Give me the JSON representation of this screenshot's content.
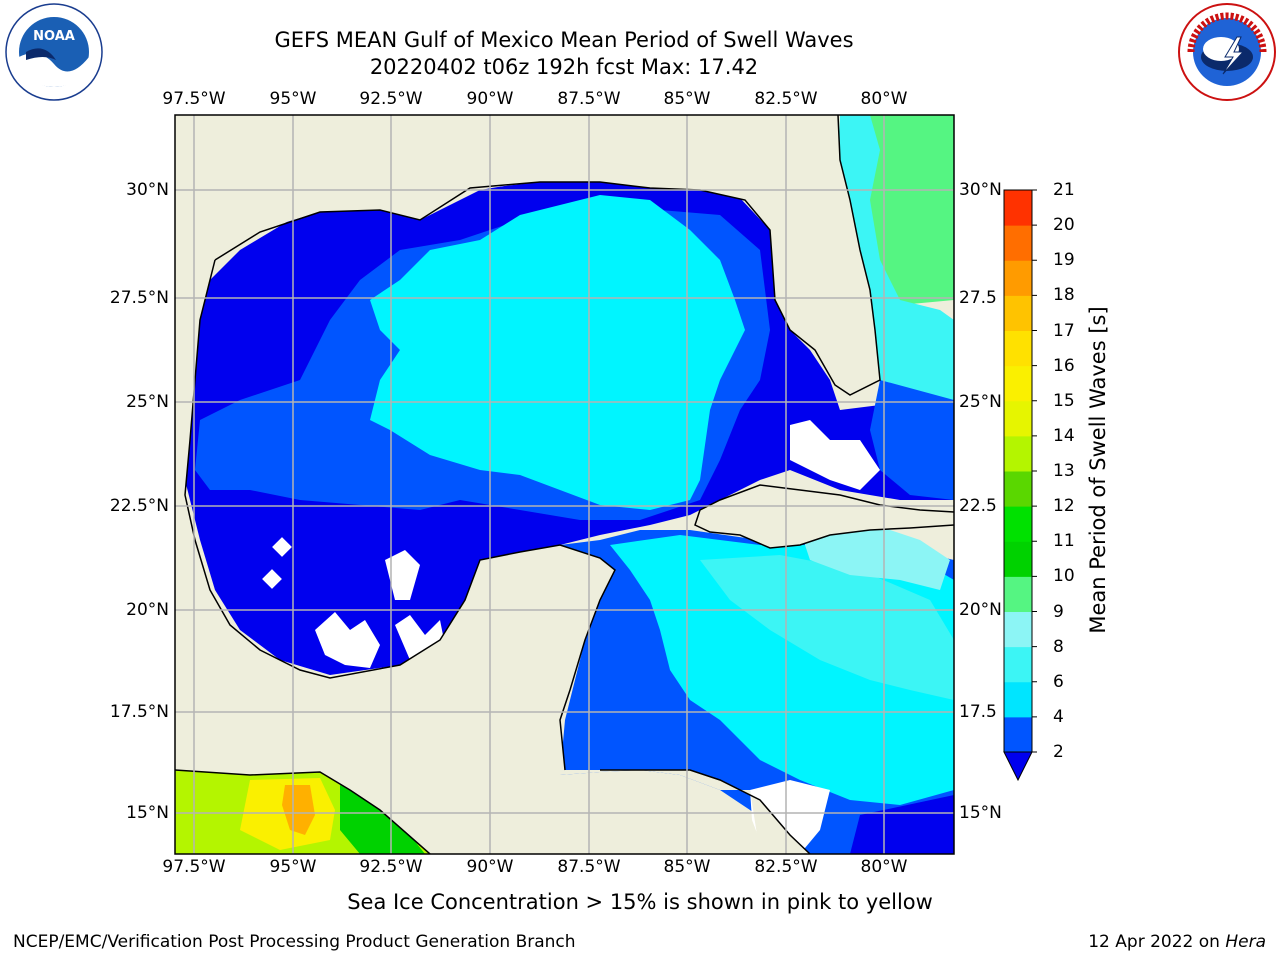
{
  "header": {
    "title_line1": "GEFS MEAN Gulf of Mexico Mean Period of Swell Waves",
    "title_line2": "20220402 t06z 192h fcst   Max: 17.42"
  },
  "logos": {
    "left": {
      "name": "NOAA",
      "ring_text": "NATIONAL OCEANIC AND ATMOSPHERIC ADMINISTRATION · U.S. DEPARTMENT OF COMMERCE"
    },
    "right": {
      "ring_text": "NATIONAL WEATHER SERVICE"
    }
  },
  "map": {
    "lon_labels": [
      "97.5°W",
      "95°W",
      "92.5°W",
      "90°W",
      "87.5°W",
      "85°W",
      "82.5°W",
      "80°W"
    ],
    "lat_labels_left": [
      "30°N",
      "27.5°N",
      "25°N",
      "22.5°N",
      "20°N",
      "17.5°N",
      "15°N"
    ],
    "lat_labels_right": [
      "30°N",
      "27.5",
      "25°N",
      "22.5",
      "20°N",
      "17.5",
      "15°N"
    ],
    "land_color": "#eeeedc",
    "grid_color": "#b4b4b4"
  },
  "colorbar": {
    "title": "Mean Period of Swell Waves [s]",
    "levels": [
      "2",
      "4",
      "6",
      "8",
      "9",
      "10",
      "11",
      "12",
      "13",
      "14",
      "15",
      "16",
      "17",
      "18",
      "19",
      "20",
      "21"
    ],
    "colors": [
      "#0055ff",
      "#00e5ff",
      "#3cf5f5",
      "#8cf5f5",
      "#55f582",
      "#00d200",
      "#00e100",
      "#5ad700",
      "#b4f500",
      "#e6f500",
      "#faf000",
      "#ffe100",
      "#ffc300",
      "#ff9b00",
      "#ff6e00",
      "#ff3200",
      "#ff0000"
    ],
    "under_color": "#0000ee"
  },
  "footer": {
    "note": "Sea Ice Concentration > 15% is shown in pink to yellow",
    "branch": "NCEP/EMC/Verification Post Processing Product Generation Branch",
    "date": "12 Apr 2022 on ",
    "host": "Hera"
  }
}
